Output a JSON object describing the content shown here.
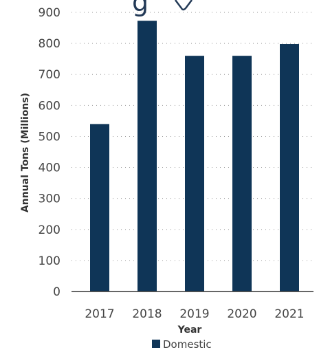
{
  "chart_data": {
    "type": "bar",
    "categories": [
      "2017",
      "2018",
      "2019",
      "2020",
      "2021"
    ],
    "series": [
      {
        "name": "Domestic",
        "values": [
          540,
          873,
          760,
          760,
          798
        ]
      }
    ],
    "xlabel": "Year",
    "ylabel": "Annual Tons (Millions)",
    "ylim": [
      0,
      900
    ],
    "yticks": [
      0,
      100,
      200,
      300,
      400,
      500,
      600,
      700,
      800,
      900
    ],
    "grid": true,
    "legend": "bottom-center",
    "colors": {
      "bar": "#0f3557"
    }
  }
}
